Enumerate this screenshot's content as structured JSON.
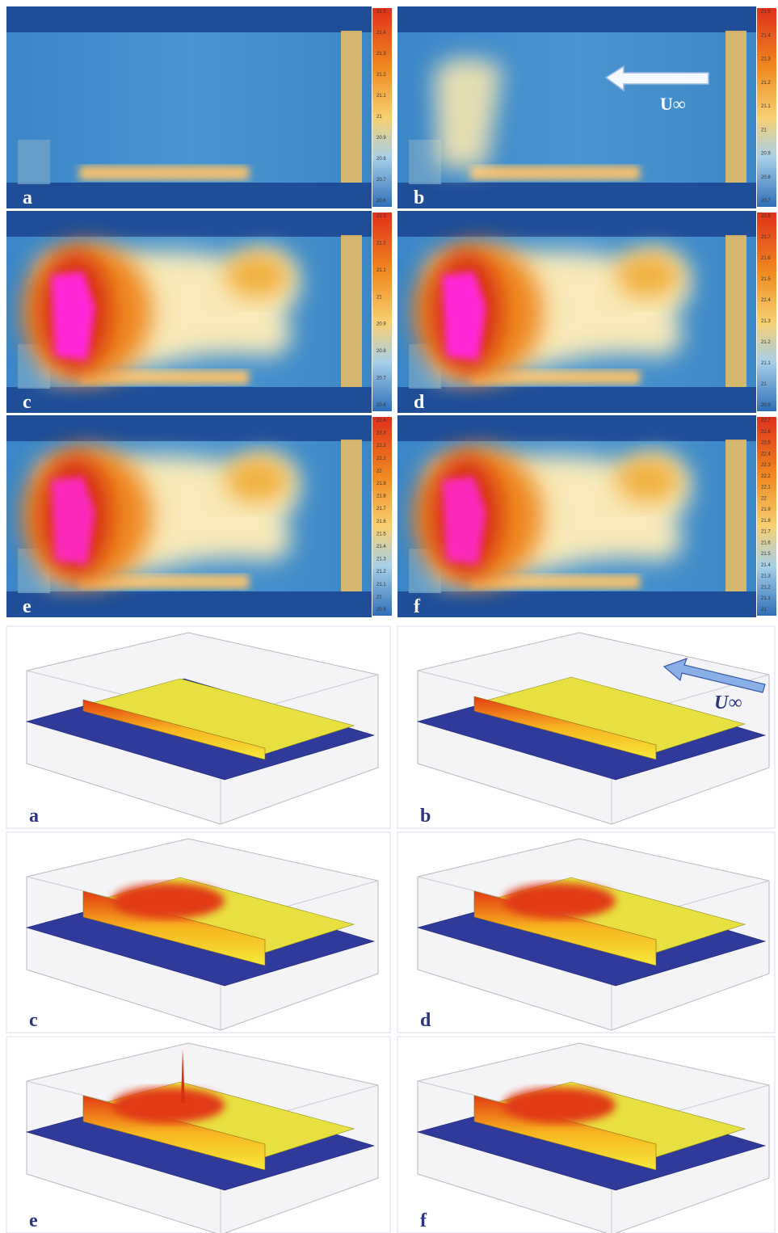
{
  "thermal_panels": [
    {
      "label": "a",
      "colorbar_ticks": [
        "21.5",
        "21.4",
        "21.3",
        "21.2",
        "21.1",
        "21",
        "20.9",
        "20.8",
        "20.7",
        "20.6"
      ]
    },
    {
      "label": "b",
      "colorbar_ticks": [
        "21.5",
        "21.4",
        "21.3",
        "21.2",
        "21.1",
        "21",
        "20.9",
        "20.8",
        "20.7"
      ],
      "annotation": "U∞"
    },
    {
      "label": "c",
      "colorbar_ticks": [
        "21.3",
        "21.2",
        "21.1",
        "21",
        "20.9",
        "20.8",
        "20.7",
        "20.6"
      ]
    },
    {
      "label": "d",
      "colorbar_ticks": [
        "21.8",
        "21.7",
        "21.6",
        "21.5",
        "21.4",
        "21.3",
        "21.2",
        "21.1",
        "21",
        "20.9"
      ]
    },
    {
      "label": "e",
      "colorbar_ticks": [
        "22.4",
        "22.3",
        "22.2",
        "22.1",
        "22",
        "21.9",
        "21.8",
        "21.7",
        "21.6",
        "21.5",
        "21.4",
        "21.3",
        "21.2",
        "21.1",
        "21",
        "20.9"
      ]
    },
    {
      "label": "f",
      "colorbar_ticks": [
        "22.7",
        "22.6",
        "22.5",
        "22.4",
        "22.3",
        "22.2",
        "22.1",
        "22",
        "21.9",
        "21.8",
        "21.7",
        "21.6",
        "21.5",
        "21.4",
        "21.3",
        "21.2",
        "21.1",
        "21"
      ]
    }
  ],
  "surface_panels": [
    {
      "label": "a"
    },
    {
      "label": "b",
      "annotation": "U∞"
    },
    {
      "label": "c"
    },
    {
      "label": "d"
    },
    {
      "label": "e"
    },
    {
      "label": "f"
    }
  ]
}
